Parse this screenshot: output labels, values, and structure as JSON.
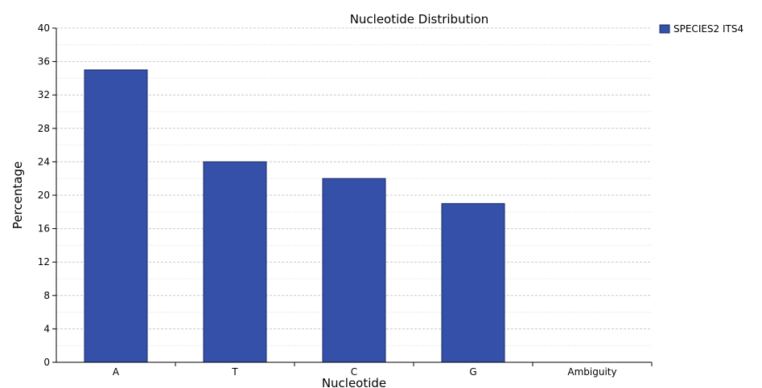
{
  "chart_data": {
    "type": "bar",
    "title": "Nucleotide Distribution",
    "xlabel": "Nucleotide",
    "ylabel": "Percentage",
    "categories": [
      "A",
      "T",
      "C",
      "G",
      "Ambiguity"
    ],
    "series": [
      {
        "name": "SPECIES2 ITS4",
        "values": [
          35,
          24,
          22,
          19,
          0
        ],
        "color": "#3550a8"
      }
    ],
    "ylim": [
      0,
      40
    ],
    "yticks": [
      0,
      4,
      8,
      12,
      16,
      20,
      24,
      28,
      32,
      36,
      40
    ],
    "grid": true,
    "legend": "top-right"
  }
}
